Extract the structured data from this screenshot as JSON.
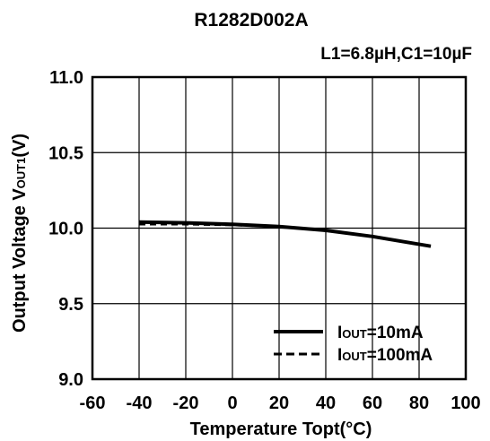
{
  "chart_data": {
    "type": "line",
    "title": "R1282D002A",
    "subtitle": "L1=6.8µH,C1=10µF",
    "xlabel": "Temperature Topt(°C)",
    "ylabel": "Output Voltage VOUT1(V)",
    "ylabel_parts": {
      "pre": "Output Voltage V",
      "sub": "OUT1",
      "post": "(V)"
    },
    "xlim": [
      -60,
      100
    ],
    "ylim": [
      9.0,
      11.0
    ],
    "xticks": [
      -60,
      -40,
      -20,
      0,
      20,
      40,
      60,
      80,
      100
    ],
    "yticks": [
      9.0,
      9.5,
      10.0,
      10.5,
      11.0
    ],
    "xtick_labels": [
      "-60",
      "-40",
      "-20",
      "0",
      "20",
      "40",
      "60",
      "80",
      "100"
    ],
    "ytick_labels": [
      "9.0",
      "9.5",
      "10.0",
      "10.5",
      "11.0"
    ],
    "grid": true,
    "legend_position": "bottom-right",
    "series": [
      {
        "name": "IOUT=10mA",
        "name_parts": {
          "pre": "I",
          "sub": "OUT",
          "post": "=10mA"
        },
        "style": "solid",
        "x": [
          -40,
          -20,
          0,
          20,
          40,
          60,
          85
        ],
        "y": [
          10.04,
          10.035,
          10.025,
          10.01,
          9.985,
          9.945,
          9.88
        ]
      },
      {
        "name": "IOUT=100mA",
        "name_parts": {
          "pre": "I",
          "sub": "OUT",
          "post": "=100mA"
        },
        "style": "dashed",
        "x": [
          -40,
          -20,
          0,
          20,
          40,
          60,
          85
        ],
        "y": [
          10.025,
          10.025,
          10.02,
          10.01,
          9.985,
          9.945,
          9.88
        ]
      }
    ]
  }
}
